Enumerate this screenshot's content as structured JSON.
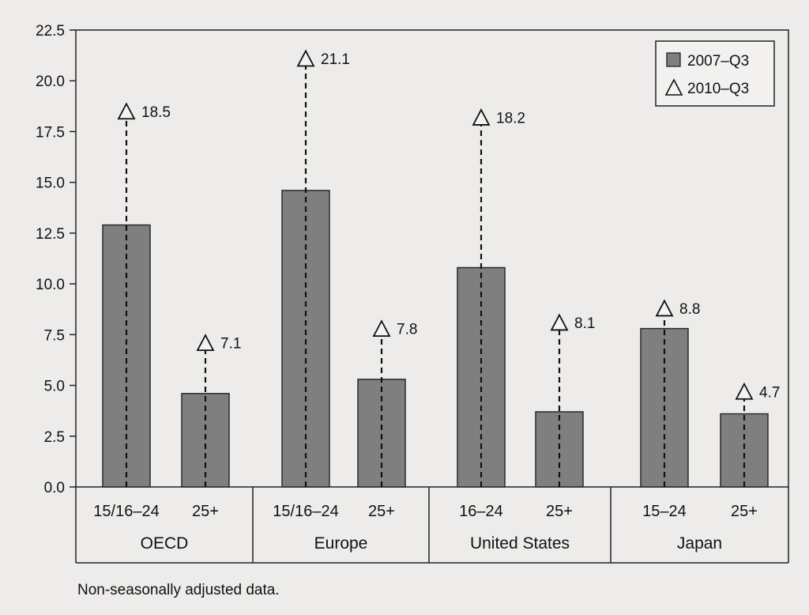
{
  "chart_data": {
    "type": "bar",
    "ylim": [
      0,
      22.5
    ],
    "yticks": [
      "0.0",
      "2.5",
      "5.0",
      "7.5",
      "10.0",
      "12.5",
      "15.0",
      "17.5",
      "20.0",
      "22.5"
    ],
    "groups": [
      {
        "name": "OECD",
        "categories": [
          "15/16–24",
          "25+"
        ]
      },
      {
        "name": "Europe",
        "categories": [
          "15/16–24",
          "25+"
        ]
      },
      {
        "name": "United States",
        "categories": [
          "16–24",
          "25+"
        ]
      },
      {
        "name": "Japan",
        "categories": [
          "15–24",
          "25+"
        ]
      }
    ],
    "series": [
      {
        "name": "2007–Q3",
        "marker": "bar",
        "values": [
          12.9,
          4.6,
          14.6,
          5.3,
          10.8,
          3.7,
          7.8,
          3.6
        ]
      },
      {
        "name": "2010–Q3",
        "marker": "triangle",
        "values": [
          18.5,
          7.1,
          21.1,
          7.8,
          18.2,
          8.1,
          8.8,
          4.7
        ]
      }
    ],
    "value_labels": [
      "18.5",
      "7.1",
      "21.1",
      "7.8",
      "18.2",
      "8.1",
      "8.8",
      "4.7"
    ],
    "legend_position": "top-right",
    "grid": false,
    "colors": {
      "bar_fill": "#7f7f7f",
      "bar_stroke": "#2a2a2a",
      "background": "#eeecea"
    }
  },
  "footnote": "Non-seasonally adjusted data."
}
